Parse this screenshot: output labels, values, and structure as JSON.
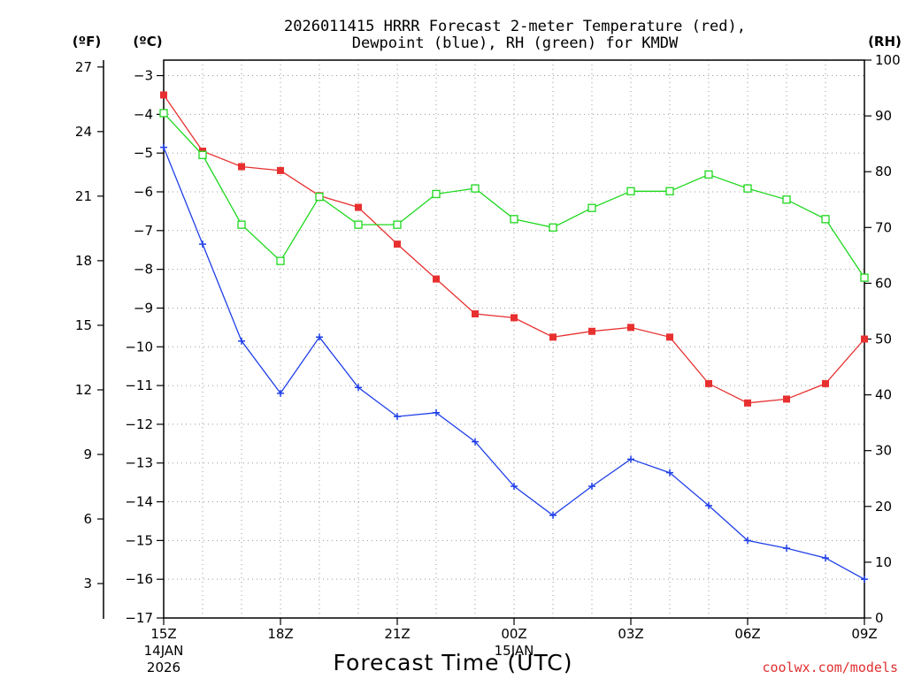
{
  "chart_data": {
    "type": "line",
    "title_line1": "2026011415 HRRR Forecast 2-meter Temperature (red),",
    "title_line2": "Dewpoint (blue), RH (green) for KMDW",
    "xlabel": "Forecast Time (UTC)",
    "credit": "coolwx.com/models",
    "units": {
      "fahrenheit": "(ºF)",
      "celsius": "(ºC)",
      "rh": "(RH)"
    },
    "x_ticks": [
      {
        "h": 0,
        "label": "15Z",
        "sub1": "14JAN",
        "sub2": "2026"
      },
      {
        "h": 3,
        "label": "18Z",
        "sub1": "",
        "sub2": ""
      },
      {
        "h": 6,
        "label": "21Z",
        "sub1": "",
        "sub2": ""
      },
      {
        "h": 9,
        "label": "00Z",
        "sub1": "15JAN",
        "sub2": ""
      },
      {
        "h": 12,
        "label": "03Z",
        "sub1": "",
        "sub2": ""
      },
      {
        "h": 15,
        "label": "06Z",
        "sub1": "",
        "sub2": ""
      },
      {
        "h": 18,
        "label": "09Z",
        "sub1": "",
        "sub2": ""
      }
    ],
    "xlim": [
      0,
      18
    ],
    "celsius_lim": [
      -17,
      -2.6
    ],
    "celsius_ticks": [
      -3,
      -4,
      -5,
      -6,
      -7,
      -8,
      -9,
      -10,
      -11,
      -12,
      -13,
      -14,
      -15,
      -16,
      -17
    ],
    "fahrenheit_ticks": [
      27,
      24,
      21,
      18,
      15,
      12,
      9,
      6,
      3
    ],
    "rh_lim": [
      0,
      100
    ],
    "rh_ticks": [
      100,
      90,
      80,
      70,
      60,
      50,
      40,
      30,
      20,
      10,
      0
    ],
    "series": [
      {
        "name": "Temperature",
        "color": "#e83030",
        "marker": "filled-square",
        "axis": "celsius",
        "values": [
          -3.5,
          -4.95,
          -5.35,
          -5.45,
          -6.1,
          -6.4,
          -7.35,
          -8.25,
          -9.15,
          -9.25,
          -9.75,
          -9.6,
          -9.5,
          -9.75,
          -10.95,
          -11.45,
          -11.35,
          -10.95,
          -9.8
        ]
      },
      {
        "name": "Dewpoint",
        "color": "#1f3fe8",
        "marker": "plus",
        "axis": "celsius",
        "values": [
          -4.85,
          -7.35,
          -9.85,
          -11.2,
          -9.75,
          -11.05,
          -11.8,
          -11.7,
          -12.45,
          -13.6,
          -14.35,
          -13.6,
          -12.9,
          -13.25,
          -14.1,
          -15.0,
          -15.2,
          -15.45,
          -16.0
        ]
      },
      {
        "name": "RH",
        "color": "#1ed81e",
        "marker": "open-square",
        "axis": "rh",
        "values": [
          90.5,
          83.0,
          70.5,
          64.0,
          75.5,
          70.5,
          70.5,
          76.0,
          77.0,
          71.5,
          70.0,
          73.5,
          76.5,
          76.5,
          79.5,
          77.0,
          75.0,
          71.5,
          61.0
        ]
      }
    ]
  }
}
